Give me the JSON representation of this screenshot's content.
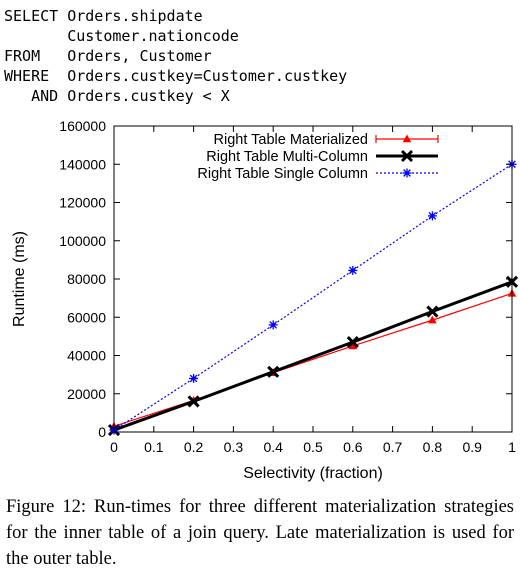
{
  "query": {
    "lines": [
      "SELECT Orders.shipdate",
      "       Customer.nationcode",
      "FROM   Orders, Customer",
      "WHERE  Orders.custkey=Customer.custkey",
      "   AND Orders.custkey < X"
    ]
  },
  "chart_data": {
    "type": "line",
    "xlabel": "Selectivity (fraction)",
    "ylabel": "Runtime (ms)",
    "xlim": [
      0,
      1
    ],
    "ylim": [
      0,
      160000
    ],
    "xticks": [
      "0",
      "0.1",
      "0.2",
      "0.3",
      "0.4",
      "0.5",
      "0.6",
      "0.7",
      "0.8",
      "0.9",
      "1"
    ],
    "yticks": [
      "0",
      "20000",
      "40000",
      "60000",
      "80000",
      "100000",
      "120000",
      "140000",
      "160000"
    ],
    "legend_position": "top-left",
    "series": [
      {
        "name": "Right Table Materialized",
        "color": "#ff0000",
        "marker": "triangle",
        "x": [
          0,
          0.2,
          0.4,
          0.6,
          0.8,
          1.0
        ],
        "y": [
          3000,
          16500,
          31000,
          45000,
          58500,
          72500
        ]
      },
      {
        "name": "Right Table Multi-Column",
        "color": "#000000",
        "marker": "cross",
        "x": [
          0,
          0.2,
          0.4,
          0.6,
          0.8,
          1.0
        ],
        "y": [
          1000,
          16000,
          31500,
          47000,
          63000,
          78500
        ]
      },
      {
        "name": "Right Table Single Column",
        "color": "#0000ff",
        "marker": "asterisk",
        "dashed": true,
        "x": [
          0,
          0.2,
          0.4,
          0.6,
          0.8,
          1.0
        ],
        "y": [
          1000,
          28000,
          56000,
          84500,
          113000,
          140000
        ]
      }
    ]
  },
  "caption": {
    "text": "Figure 12:  Run-times for three different materialization strategies for the inner table of a join query.  Late materialization is used for the outer table."
  }
}
